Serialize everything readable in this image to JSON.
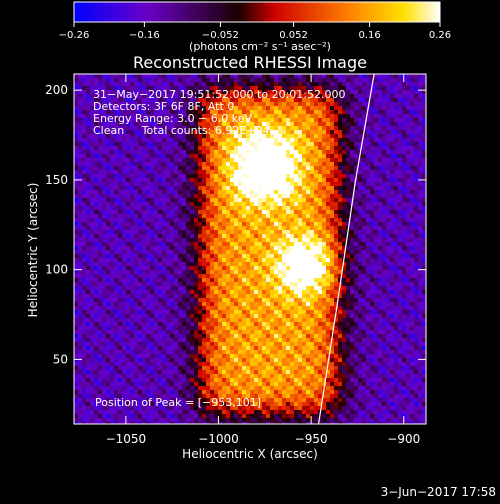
{
  "chart_data": {
    "type": "heatmap",
    "title": "Reconstructed RHESSI Image",
    "xlabel": "Heliocentric X (arcsec)",
    "ylabel": "Heliocentric Y (arcsec)",
    "xlim": [
      -1078,
      -888
    ],
    "ylim": [
      14,
      209
    ],
    "x_ticks": [
      -1050,
      -1000,
      -950,
      -900
    ],
    "x_tick_labels": [
      "−1050",
      "−1000",
      "−950",
      "−900"
    ],
    "y_ticks": [
      50,
      100,
      150,
      200
    ],
    "y_tick_labels": [
      "50",
      "100",
      "150",
      "200"
    ],
    "colorbar": {
      "min": -0.26,
      "max": 0.26,
      "ticks": [
        -0.26,
        -0.16,
        -0.052,
        0.052,
        0.16,
        0.26
      ],
      "tick_labels": [
        "−0.26",
        "−0.16",
        "−0.052",
        "0.052",
        "0.16",
        "0.26"
      ],
      "units_label": "(photons cm⁻² s⁻¹ asec⁻²)",
      "colormap": [
        "#0000ff",
        "#6a00c8",
        "#1a0000",
        "#ff2000",
        "#ffb000",
        "#ffffff"
      ]
    },
    "annotations": [
      "31−May−2017 19:51:52.000 to 20:01:52.000",
      "Detectors: 3F 6F 8F, Att 0",
      "Energy Range: 3.0 − 6.0 keV",
      "Clean     Total counts: 6.92E+04"
    ],
    "peak_label": "Position of Peak = [−953,101]",
    "peak": [
      -953,
      101
    ],
    "limb_curve": {
      "x": [
        -946,
        -936,
        -926,
        -916
      ],
      "y": [
        14,
        80,
        150,
        209
      ]
    },
    "source_regions": [
      {
        "x": [
          -1010,
          -935
        ],
        "y": [
          20,
          200
        ],
        "intensity": 0.16
      },
      {
        "x": [
          -990,
          -960
        ],
        "y": [
          140,
          175
        ],
        "intensity": 0.22
      },
      {
        "x": [
          -965,
          -940
        ],
        "y": [
          90,
          115
        ],
        "intensity": 0.26
      }
    ],
    "background_intensity": -0.15
  },
  "footer": {
    "date": "3−Jun−2017 17:58"
  }
}
